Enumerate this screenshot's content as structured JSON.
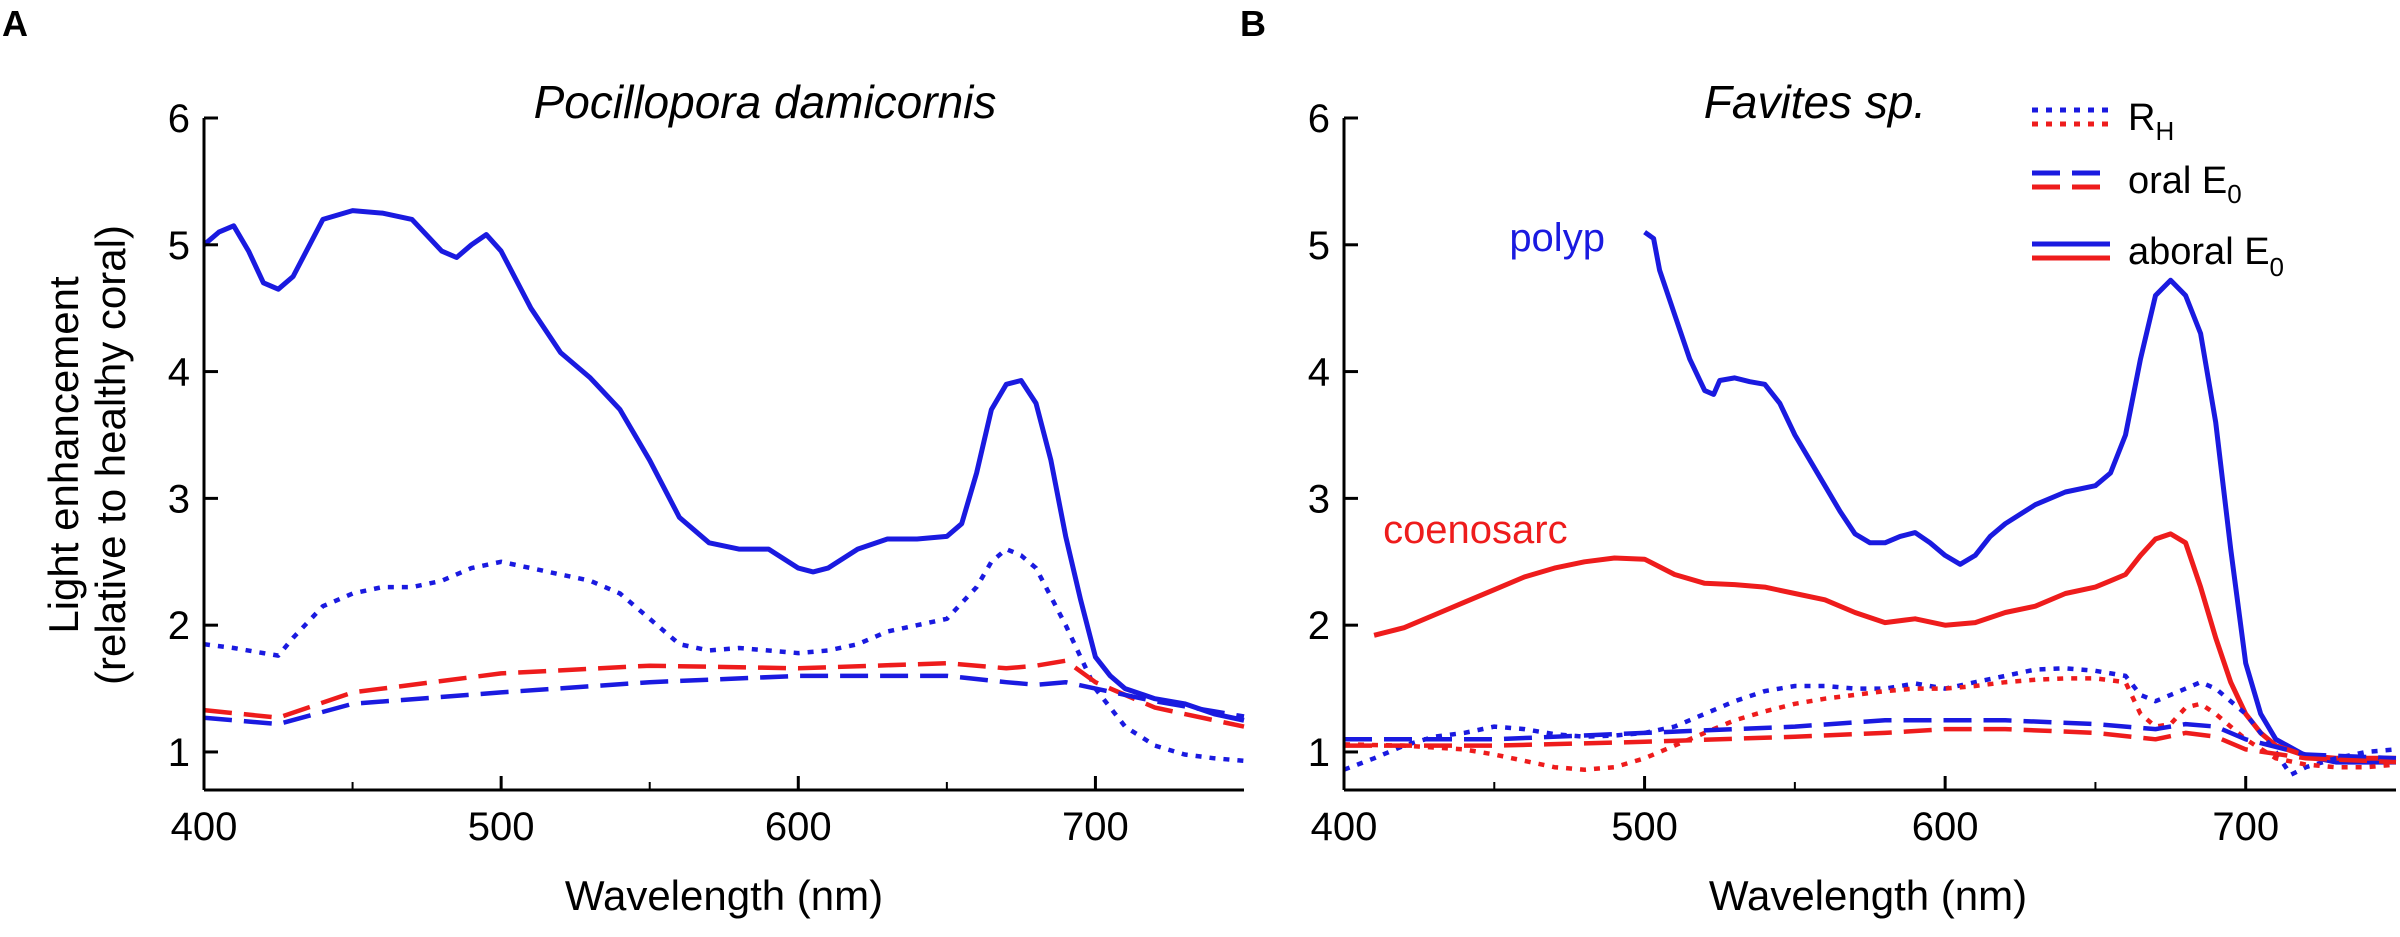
{
  "colors": {
    "blue": "#1a1ae0",
    "red": "#ee1c1c",
    "axis": "#000000"
  },
  "chart_data": [
    {
      "type": "line",
      "panel": "A",
      "title": "Pocillopora damicornis",
      "xlabel": "Wavelength (nm)",
      "ylabel": [
        "Light enhancement",
        "(relative to healthy coral)"
      ],
      "xlim": [
        400,
        750
      ],
      "ylim": [
        0.7,
        6
      ],
      "xticks": [
        "400",
        "500",
        "600",
        "700"
      ],
      "yticks": [
        "1",
        "2",
        "3",
        "4",
        "5",
        "6"
      ],
      "annotations": [],
      "series": [
        {
          "name": "aboral E0 (blue)",
          "color": "blue",
          "style": "solid",
          "x": [
            400,
            405,
            410,
            415,
            420,
            425,
            430,
            440,
            450,
            460,
            470,
            480,
            485,
            490,
            495,
            500,
            510,
            520,
            530,
            540,
            550,
            560,
            570,
            580,
            590,
            600,
            605,
            610,
            620,
            630,
            640,
            650,
            655,
            660,
            665,
            670,
            675,
            680,
            685,
            690,
            695,
            700,
            705,
            710,
            720,
            730,
            740,
            750
          ],
          "y": [
            5.0,
            5.1,
            5.15,
            4.95,
            4.7,
            4.65,
            4.75,
            5.2,
            5.27,
            5.25,
            5.2,
            4.95,
            4.9,
            5.0,
            5.08,
            4.95,
            4.5,
            4.15,
            3.95,
            3.7,
            3.3,
            2.85,
            2.65,
            2.6,
            2.6,
            2.45,
            2.42,
            2.45,
            2.6,
            2.68,
            2.68,
            2.7,
            2.8,
            3.2,
            3.7,
            3.9,
            3.93,
            3.75,
            3.3,
            2.7,
            2.2,
            1.75,
            1.6,
            1.5,
            1.42,
            1.38,
            1.3,
            1.25
          ]
        },
        {
          "name": "RH (blue)",
          "color": "blue",
          "style": "dotted",
          "x": [
            400,
            410,
            420,
            425,
            430,
            440,
            450,
            460,
            470,
            480,
            490,
            500,
            510,
            520,
            530,
            540,
            550,
            560,
            570,
            580,
            590,
            600,
            610,
            620,
            630,
            640,
            650,
            660,
            665,
            670,
            675,
            680,
            690,
            700,
            710,
            720,
            730,
            740,
            750
          ],
          "y": [
            1.85,
            1.82,
            1.78,
            1.76,
            1.9,
            2.15,
            2.25,
            2.3,
            2.3,
            2.35,
            2.45,
            2.5,
            2.45,
            2.4,
            2.35,
            2.25,
            2.05,
            1.85,
            1.8,
            1.82,
            1.8,
            1.78,
            1.8,
            1.85,
            1.95,
            2.0,
            2.05,
            2.3,
            2.5,
            2.6,
            2.55,
            2.45,
            2.0,
            1.5,
            1.2,
            1.05,
            0.98,
            0.95,
            0.93
          ]
        },
        {
          "name": "oral E0 (red)",
          "color": "red",
          "style": "dashed",
          "x": [
            400,
            425,
            450,
            500,
            550,
            600,
            650,
            670,
            680,
            690,
            700,
            720,
            740,
            750
          ],
          "y": [
            1.33,
            1.27,
            1.47,
            1.62,
            1.68,
            1.66,
            1.7,
            1.66,
            1.68,
            1.72,
            1.55,
            1.35,
            1.25,
            1.2
          ]
        },
        {
          "name": "oral E0 (blue)",
          "color": "blue",
          "style": "dashed",
          "x": [
            400,
            425,
            450,
            500,
            550,
            600,
            650,
            670,
            680,
            690,
            700,
            720,
            740,
            750
          ],
          "y": [
            1.27,
            1.22,
            1.38,
            1.47,
            1.55,
            1.6,
            1.6,
            1.55,
            1.53,
            1.55,
            1.5,
            1.4,
            1.32,
            1.28
          ]
        }
      ]
    },
    {
      "type": "line",
      "panel": "B",
      "title": "Favites sp.",
      "xlabel": "Wavelength (nm)",
      "ylabel": [],
      "xlim": [
        400,
        750
      ],
      "ylim": [
        0.7,
        6
      ],
      "xticks": [
        "400",
        "500",
        "600",
        "700"
      ],
      "yticks": [
        "1",
        "2",
        "3",
        "4",
        "5",
        "6"
      ],
      "annotations": [
        {
          "text": "polyp",
          "color": "blue",
          "x": 455,
          "y": 4.95
        },
        {
          "text": "coenosarc",
          "color": "red",
          "x": 413,
          "y": 2.65
        }
      ],
      "legend": {
        "position": "top-right",
        "entries": [
          {
            "label": "R",
            "sub": "H",
            "style": "dotted"
          },
          {
            "label": "oral E",
            "sub": "0",
            "style": "dashed"
          },
          {
            "label": "aboral E",
            "sub": "0",
            "style": "solid"
          }
        ]
      },
      "series": [
        {
          "name": "polyp aboral E0",
          "color": "blue",
          "style": "solid",
          "x": [
            500,
            503,
            505,
            510,
            515,
            520,
            523,
            525,
            530,
            535,
            540,
            545,
            550,
            555,
            560,
            565,
            570,
            575,
            580,
            585,
            590,
            595,
            600,
            605,
            610,
            615,
            620,
            630,
            640,
            650,
            655,
            660,
            665,
            670,
            675,
            680,
            685,
            690,
            695,
            700,
            705,
            710,
            720,
            730,
            740,
            750
          ],
          "y": [
            5.1,
            5.05,
            4.8,
            4.45,
            4.1,
            3.85,
            3.82,
            3.93,
            3.95,
            3.92,
            3.9,
            3.75,
            3.5,
            3.3,
            3.1,
            2.9,
            2.72,
            2.65,
            2.65,
            2.7,
            2.73,
            2.65,
            2.55,
            2.48,
            2.55,
            2.7,
            2.8,
            2.95,
            3.05,
            3.1,
            3.2,
            3.5,
            4.1,
            4.6,
            4.72,
            4.6,
            4.3,
            3.6,
            2.6,
            1.7,
            1.3,
            1.1,
            0.97,
            0.92,
            0.92,
            0.92
          ]
        },
        {
          "name": "coenosarc aboral E0",
          "color": "red",
          "style": "solid",
          "x": [
            410,
            420,
            430,
            440,
            450,
            460,
            470,
            480,
            490,
            500,
            510,
            520,
            530,
            540,
            550,
            560,
            570,
            580,
            590,
            600,
            610,
            620,
            630,
            640,
            650,
            655,
            660,
            665,
            670,
            675,
            680,
            685,
            690,
            695,
            700,
            705,
            710,
            720,
            730,
            740,
            750
          ],
          "y": [
            1.92,
            1.98,
            2.08,
            2.18,
            2.28,
            2.38,
            2.45,
            2.5,
            2.53,
            2.52,
            2.4,
            2.33,
            2.32,
            2.3,
            2.25,
            2.2,
            2.1,
            2.02,
            2.05,
            2.0,
            2.02,
            2.1,
            2.15,
            2.25,
            2.3,
            2.35,
            2.4,
            2.55,
            2.68,
            2.72,
            2.65,
            2.3,
            1.9,
            1.55,
            1.3,
            1.15,
            1.05,
            0.97,
            0.95,
            0.95,
            0.95
          ]
        },
        {
          "name": "RH (blue)",
          "color": "blue",
          "style": "dotted",
          "x": [
            400,
            410,
            420,
            430,
            440,
            450,
            460,
            470,
            480,
            490,
            500,
            510,
            520,
            530,
            540,
            550,
            560,
            570,
            580,
            590,
            600,
            610,
            620,
            630,
            640,
            650,
            660,
            665,
            670,
            675,
            680,
            685,
            690,
            700,
            710,
            715,
            720,
            730,
            740,
            750
          ],
          "y": [
            0.86,
            0.95,
            1.05,
            1.12,
            1.15,
            1.2,
            1.18,
            1.14,
            1.12,
            1.13,
            1.15,
            1.2,
            1.3,
            1.4,
            1.48,
            1.52,
            1.52,
            1.5,
            1.5,
            1.54,
            1.5,
            1.55,
            1.6,
            1.65,
            1.66,
            1.64,
            1.6,
            1.45,
            1.4,
            1.45,
            1.5,
            1.55,
            1.5,
            1.3,
            1.0,
            0.82,
            0.88,
            0.95,
            1.0,
            1.02
          ]
        },
        {
          "name": "RH (red)",
          "color": "red",
          "style": "dotted",
          "x": [
            400,
            420,
            440,
            450,
            460,
            470,
            480,
            490,
            500,
            510,
            520,
            530,
            540,
            550,
            560,
            570,
            580,
            590,
            600,
            610,
            620,
            630,
            640,
            650,
            660,
            665,
            670,
            675,
            680,
            685,
            690,
            700,
            710,
            720,
            730,
            740,
            750
          ],
          "y": [
            1.06,
            1.05,
            1.02,
            0.98,
            0.93,
            0.88,
            0.86,
            0.88,
            0.95,
            1.05,
            1.15,
            1.25,
            1.32,
            1.38,
            1.42,
            1.45,
            1.48,
            1.5,
            1.5,
            1.52,
            1.55,
            1.57,
            1.58,
            1.58,
            1.55,
            1.3,
            1.2,
            1.22,
            1.35,
            1.38,
            1.3,
            1.1,
            0.95,
            0.9,
            0.88,
            0.88,
            0.9
          ]
        },
        {
          "name": "oral E0 (blue)",
          "color": "blue",
          "style": "dashed",
          "x": [
            400,
            450,
            500,
            550,
            580,
            600,
            620,
            650,
            670,
            680,
            690,
            700,
            720,
            750
          ],
          "y": [
            1.1,
            1.1,
            1.15,
            1.2,
            1.25,
            1.25,
            1.25,
            1.22,
            1.18,
            1.22,
            1.2,
            1.1,
            0.98,
            0.95
          ]
        },
        {
          "name": "oral E0 (red)",
          "color": "red",
          "style": "dashed",
          "x": [
            400,
            450,
            500,
            550,
            580,
            600,
            620,
            650,
            670,
            680,
            690,
            700,
            720,
            750
          ],
          "y": [
            1.05,
            1.05,
            1.08,
            1.12,
            1.15,
            1.18,
            1.18,
            1.15,
            1.1,
            1.15,
            1.12,
            1.02,
            0.95,
            0.92
          ]
        }
      ]
    }
  ]
}
